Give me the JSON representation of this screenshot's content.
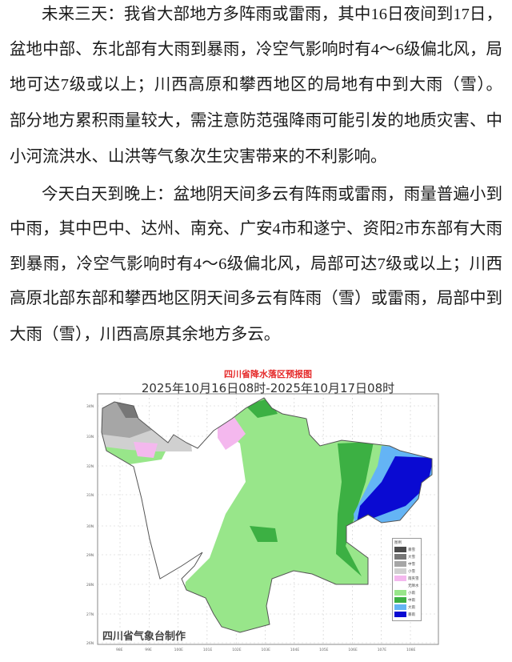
{
  "paragraphs": [
    {
      "lines": [
        "未来三天：我省大部地方多阵雨或雷雨，其中16日夜间到17日，",
        "盆地中部、东北部有大雨到暴雨，冷空气影响时有4～6级偏北风，局",
        "地可达7级或以上；川西高原和攀西地区的局地有中到大雨（雪）。",
        "部分地方累积雨量较大，需注意防范强降雨可能引发的地质灾害、中",
        "小河流洪水、山洪等气象次生灾害带来的不利影响。"
      ]
    },
    {
      "lines": [
        "今天白天到晚上：盆地阴天间多云有阵雨或雷雨，雨量普遍小到",
        "中雨，其中巴中、达州、南充、广安4市和遂宁、资阳2市东部有大雨",
        "到暴雨，冷空气影响时有4～6级偏北风，局部可达7级或以上；川西",
        "高原北部东部和攀西地区阴天间多云有阵雨（雪）或雷雨，局部中到",
        "大雨（雪），川西高原其余地方多云。"
      ]
    }
  ],
  "map": {
    "title": "四川省降水落区预报图",
    "subtitle": "2025年10月16日08时-2025年10月17日08时",
    "credit": "四川省气象台制作",
    "y_ticks": [
      "34N",
      "33N",
      "32N",
      "31N",
      "30N",
      "29N",
      "28N",
      "27N",
      "26N"
    ],
    "x_ticks": [
      "98E",
      "99E",
      "100E",
      "101E",
      "102E",
      "103E",
      "104E",
      "105E",
      "106E",
      "107E",
      "108E"
    ],
    "legend": {
      "title": "图例",
      "items": [
        {
          "label": "暴雪",
          "color": "#4a4a4a"
        },
        {
          "label": "大雪",
          "color": "#777777"
        },
        {
          "label": "中雪",
          "color": "#a6a6a6"
        },
        {
          "label": "小雪",
          "color": "#d0d0d0"
        },
        {
          "label": "雨夹雪",
          "color": "#f4b8ee"
        },
        {
          "label": "无降水",
          "color": "#ffffff"
        },
        {
          "label": "小雨",
          "color": "#98e68a"
        },
        {
          "label": "中雨",
          "color": "#3cb043"
        },
        {
          "label": "大雨",
          "color": "#64b4f5"
        },
        {
          "label": "暴雨",
          "color": "#0a0ad2"
        }
      ]
    }
  }
}
